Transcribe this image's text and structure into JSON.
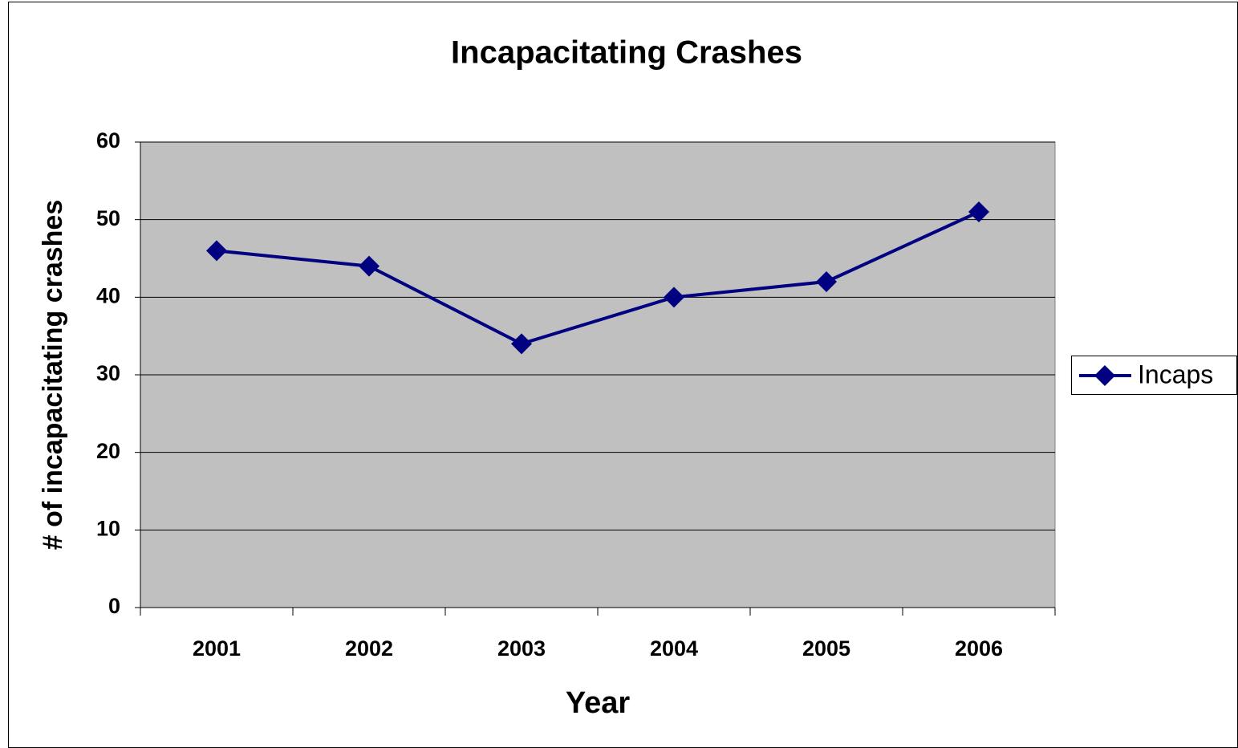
{
  "chart_data": {
    "type": "line",
    "title": "Incapacitating Crashes",
    "x_label": "Year",
    "y_label": "# of incapacitating crashes",
    "categories": [
      "2001",
      "2002",
      "2003",
      "2004",
      "2005",
      "2006"
    ],
    "series": [
      {
        "name": "Incaps",
        "color": "#000080",
        "values": [
          46,
          44,
          34,
          40,
          42,
          51
        ]
      }
    ],
    "ylim": [
      0,
      60
    ],
    "yticks": [
      0,
      10,
      20,
      30,
      40,
      50,
      60
    ],
    "grid": true,
    "legend": "right"
  }
}
